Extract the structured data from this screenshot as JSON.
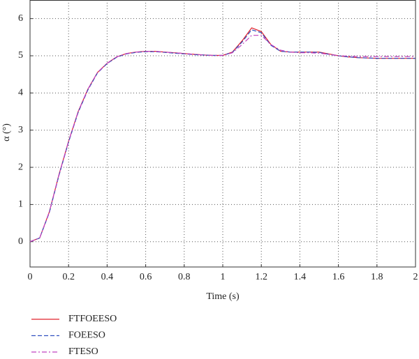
{
  "chart_data": {
    "type": "line",
    "x_label": "Time (s)",
    "y_label": "α (°)",
    "xlim": [
      0,
      2
    ],
    "ylim": [
      -0.68,
      6.5
    ],
    "xticks": [
      0,
      0.2,
      0.4,
      0.6,
      0.8,
      1,
      1.2,
      1.4,
      1.6,
      1.8,
      2
    ],
    "yticks": [
      0,
      1,
      2,
      3,
      4,
      5,
      6
    ],
    "grid": true,
    "x": [
      0,
      0.05,
      0.1,
      0.15,
      0.2,
      0.25,
      0.3,
      0.35,
      0.4,
      0.45,
      0.5,
      0.55,
      0.6,
      0.65,
      0.7,
      0.75,
      0.8,
      0.85,
      0.9,
      0.95,
      1.0,
      1.05,
      1.1,
      1.15,
      1.2,
      1.25,
      1.3,
      1.35,
      1.4,
      1.45,
      1.5,
      1.55,
      1.6,
      1.65,
      1.7,
      1.75,
      1.8,
      1.85,
      1.9,
      1.95,
      2.0
    ],
    "series": [
      {
        "name": "FTFOEESO",
        "color": "#e0202a",
        "style": "solid",
        "values": [
          0,
          0.1,
          0.8,
          1.8,
          2.7,
          3.5,
          4.1,
          4.55,
          4.8,
          4.97,
          5.06,
          5.1,
          5.12,
          5.12,
          5.1,
          5.08,
          5.06,
          5.04,
          5.02,
          5.01,
          5.01,
          5.1,
          5.4,
          5.75,
          5.65,
          5.3,
          5.12,
          5.1,
          5.1,
          5.1,
          5.1,
          5.05,
          5.0,
          4.97,
          4.95,
          4.94,
          4.93,
          4.93,
          4.93,
          4.93,
          4.93
        ]
      },
      {
        "name": "FOEESO",
        "color": "#3050c0",
        "style": "dashed",
        "values": [
          0,
          0.1,
          0.78,
          1.78,
          2.68,
          3.48,
          4.08,
          4.54,
          4.79,
          4.96,
          5.05,
          5.09,
          5.11,
          5.11,
          5.09,
          5.07,
          5.05,
          5.03,
          5.02,
          5.01,
          5.01,
          5.09,
          5.37,
          5.7,
          5.62,
          5.28,
          5.12,
          5.1,
          5.1,
          5.1,
          5.09,
          5.04,
          5.0,
          4.97,
          4.95,
          4.94,
          4.93,
          4.93,
          4.93,
          4.93,
          4.93
        ]
      },
      {
        "name": "FTESO",
        "color": "#c040c0",
        "style": "dashdot",
        "values": [
          0,
          0.1,
          0.8,
          1.8,
          2.7,
          3.5,
          4.1,
          4.55,
          4.8,
          4.97,
          5.06,
          5.1,
          5.12,
          5.12,
          5.1,
          5.08,
          5.06,
          5.04,
          5.02,
          5.01,
          5.01,
          5.08,
          5.3,
          5.55,
          5.55,
          5.3,
          5.15,
          5.1,
          5.08,
          5.08,
          5.07,
          5.04,
          5.0,
          4.99,
          4.98,
          4.98,
          4.98,
          4.98,
          4.98,
          4.98,
          4.98
        ]
      }
    ]
  }
}
